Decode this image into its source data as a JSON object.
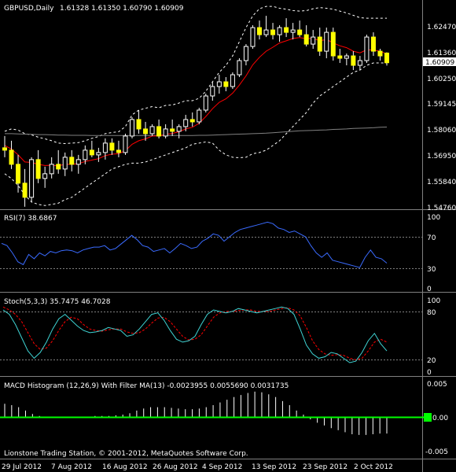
{
  "main_panel": {
    "header": {
      "symbol": "GBPUSD,Daily",
      "ohlc": "1.61328 1.61350 1.60790 1.60909"
    },
    "price_axis_labels": [
      "1.62470",
      "1.61360",
      "1.60250",
      "1.59145",
      "1.58060",
      "1.56950",
      "1.55840",
      "1.54760"
    ],
    "current_price": "1.60909",
    "current_price_box_color": "#ffffff"
  },
  "rsi_panel": {
    "header": "RSI(7) 38.6867",
    "levels": [
      "100",
      "70",
      "30",
      "0"
    ]
  },
  "stoch_panel": {
    "header": "Stoch(5,3,3) 35.7475 46.7028",
    "levels": [
      "100",
      "80",
      "20",
      "0"
    ]
  },
  "macd_panel": {
    "header": "MACD Histogram (12,26,9) With Filter MA(13) -0.0023955 0.0055690 0.0031735",
    "levels": [
      "0.005",
      "0.00",
      "-0.005"
    ]
  },
  "footer": {
    "copyright": "Lionstone Trading Station, © 2001-2012, MetaQuotes Software Corp."
  },
  "time_axis": {
    "labels": [
      "29 Jul 2012",
      "7 Aug 2012",
      "16 Aug 2012",
      "26 Aug 2012",
      "4 Sep 2012",
      "13 Sep 2012",
      "23 Sep 2012",
      "2 Oct 2012"
    ]
  },
  "colors": {
    "background": "#000000",
    "grid_text": "#ffffff",
    "candle_bull": "#000000",
    "candle_bear": "#ffff00",
    "ema_red": "#ff0000",
    "ma_gray": "#808080",
    "bands_white": "#ffffff",
    "rsi_line": "#3a6bff",
    "stoch_main": "#3fd4d4",
    "stoch_signal": "#ff0000",
    "macd_hist": "#ffffff",
    "macd_zero": "#00ff00",
    "divider": "#808080"
  },
  "chart_data": {
    "type": "line",
    "symbol": "GBPUSD",
    "timeframe": "Daily",
    "price_ylim": [
      1.5476,
      1.6325
    ],
    "candles": [
      {
        "o": 1.573,
        "h": 1.578,
        "l": 1.569,
        "c": 1.572
      },
      {
        "o": 1.572,
        "h": 1.576,
        "l": 1.564,
        "c": 1.566
      },
      {
        "o": 1.566,
        "h": 1.57,
        "l": 1.554,
        "c": 1.558
      },
      {
        "o": 1.558,
        "h": 1.564,
        "l": 1.548,
        "c": 1.552
      },
      {
        "o": 1.552,
        "h": 1.569,
        "l": 1.55,
        "c": 1.568
      },
      {
        "o": 1.568,
        "h": 1.572,
        "l": 1.558,
        "c": 1.56
      },
      {
        "o": 1.56,
        "h": 1.565,
        "l": 1.556,
        "c": 1.562
      },
      {
        "o": 1.562,
        "h": 1.569,
        "l": 1.56,
        "c": 1.566
      },
      {
        "o": 1.566,
        "h": 1.572,
        "l": 1.562,
        "c": 1.564
      },
      {
        "o": 1.564,
        "h": 1.571,
        "l": 1.561,
        "c": 1.569
      },
      {
        "o": 1.569,
        "h": 1.572,
        "l": 1.563,
        "c": 1.566
      },
      {
        "o": 1.566,
        "h": 1.57,
        "l": 1.562,
        "c": 1.568
      },
      {
        "o": 1.568,
        "h": 1.574,
        "l": 1.566,
        "c": 1.572
      },
      {
        "o": 1.572,
        "h": 1.576,
        "l": 1.569,
        "c": 1.57
      },
      {
        "o": 1.57,
        "h": 1.573,
        "l": 1.567,
        "c": 1.571
      },
      {
        "o": 1.571,
        "h": 1.577,
        "l": 1.568,
        "c": 1.575
      },
      {
        "o": 1.575,
        "h": 1.577,
        "l": 1.57,
        "c": 1.572
      },
      {
        "o": 1.572,
        "h": 1.576,
        "l": 1.569,
        "c": 1.571
      },
      {
        "o": 1.571,
        "h": 1.579,
        "l": 1.57,
        "c": 1.578
      },
      {
        "o": 1.578,
        "h": 1.586,
        "l": 1.577,
        "c": 1.585
      },
      {
        "o": 1.585,
        "h": 1.589,
        "l": 1.579,
        "c": 1.581
      },
      {
        "o": 1.581,
        "h": 1.584,
        "l": 1.576,
        "c": 1.579
      },
      {
        "o": 1.579,
        "h": 1.583,
        "l": 1.578,
        "c": 1.582
      },
      {
        "o": 1.582,
        "h": 1.585,
        "l": 1.577,
        "c": 1.578
      },
      {
        "o": 1.578,
        "h": 1.583,
        "l": 1.577,
        "c": 1.581
      },
      {
        "o": 1.581,
        "h": 1.585,
        "l": 1.578,
        "c": 1.58
      },
      {
        "o": 1.58,
        "h": 1.583,
        "l": 1.577,
        "c": 1.582
      },
      {
        "o": 1.582,
        "h": 1.587,
        "l": 1.58,
        "c": 1.585
      },
      {
        "o": 1.585,
        "h": 1.588,
        "l": 1.582,
        "c": 1.584
      },
      {
        "o": 1.584,
        "h": 1.59,
        "l": 1.583,
        "c": 1.589
      },
      {
        "o": 1.589,
        "h": 1.596,
        "l": 1.588,
        "c": 1.595
      },
      {
        "o": 1.595,
        "h": 1.601,
        "l": 1.593,
        "c": 1.599
      },
      {
        "o": 1.599,
        "h": 1.604,
        "l": 1.596,
        "c": 1.601
      },
      {
        "o": 1.601,
        "h": 1.603,
        "l": 1.597,
        "c": 1.599
      },
      {
        "o": 1.599,
        "h": 1.605,
        "l": 1.598,
        "c": 1.604
      },
      {
        "o": 1.604,
        "h": 1.611,
        "l": 1.603,
        "c": 1.61
      },
      {
        "o": 1.61,
        "h": 1.617,
        "l": 1.608,
        "c": 1.616
      },
      {
        "o": 1.616,
        "h": 1.625,
        "l": 1.615,
        "c": 1.624
      },
      {
        "o": 1.624,
        "h": 1.627,
        "l": 1.619,
        "c": 1.621
      },
      {
        "o": 1.621,
        "h": 1.629,
        "l": 1.62,
        "c": 1.623
      },
      {
        "o": 1.623,
        "h": 1.626,
        "l": 1.619,
        "c": 1.621
      },
      {
        "o": 1.621,
        "h": 1.625,
        "l": 1.618,
        "c": 1.624
      },
      {
        "o": 1.624,
        "h": 1.628,
        "l": 1.62,
        "c": 1.622
      },
      {
        "o": 1.622,
        "h": 1.626,
        "l": 1.619,
        "c": 1.623
      },
      {
        "o": 1.623,
        "h": 1.627,
        "l": 1.62,
        "c": 1.621
      },
      {
        "o": 1.621,
        "h": 1.625,
        "l": 1.616,
        "c": 1.617
      },
      {
        "o": 1.617,
        "h": 1.623,
        "l": 1.615,
        "c": 1.62
      },
      {
        "o": 1.62,
        "h": 1.624,
        "l": 1.612,
        "c": 1.614
      },
      {
        "o": 1.614,
        "h": 1.624,
        "l": 1.611,
        "c": 1.622
      },
      {
        "o": 1.622,
        "h": 1.624,
        "l": 1.61,
        "c": 1.612
      },
      {
        "o": 1.612,
        "h": 1.615,
        "l": 1.609,
        "c": 1.611
      },
      {
        "o": 1.611,
        "h": 1.613,
        "l": 1.608,
        "c": 1.612
      },
      {
        "o": 1.612,
        "h": 1.614,
        "l": 1.606,
        "c": 1.608
      },
      {
        "o": 1.608,
        "h": 1.612,
        "l": 1.606,
        "c": 1.61
      },
      {
        "o": 1.61,
        "h": 1.621,
        "l": 1.609,
        "c": 1.62
      },
      {
        "o": 1.62,
        "h": 1.622,
        "l": 1.612,
        "c": 1.614
      },
      {
        "o": 1.614,
        "h": 1.615,
        "l": 1.61,
        "c": 1.612
      },
      {
        "o": 1.6132,
        "h": 1.6135,
        "l": 1.6079,
        "c": 1.6091
      }
    ],
    "ema_red": [
      1.574,
      1.5725,
      1.57,
      1.567,
      1.5668,
      1.566,
      1.5655,
      1.5656,
      1.5654,
      1.566,
      1.566,
      1.5663,
      1.5672,
      1.5678,
      1.5684,
      1.5697,
      1.5703,
      1.5705,
      1.5718,
      1.5745,
      1.576,
      1.5768,
      1.578,
      1.578,
      1.5787,
      1.5791,
      1.5798,
      1.581,
      1.5817,
      1.5834,
      1.5863,
      1.5896,
      1.5923,
      1.5938,
      1.5962,
      1.5996,
      1.6035,
      1.6082,
      1.6114,
      1.614,
      1.6157,
      1.6175,
      1.6184,
      1.6194,
      1.6198,
      1.6193,
      1.6195,
      1.6184,
      1.619,
      1.6175,
      1.6163,
      1.6155,
      1.614,
      1.6133,
      1.6146,
      1.6145,
      1.614,
      1.6128
    ],
    "ma_gray": [
      1.579,
      1.579,
      1.5789,
      1.5788,
      1.5787,
      1.5786,
      1.5786,
      1.5785,
      1.5784,
      1.5784,
      1.5783,
      1.5783,
      1.5783,
      1.5782,
      1.5782,
      1.5782,
      1.5782,
      1.5782,
      1.5782,
      1.5782,
      1.5782,
      1.5782,
      1.5782,
      1.5782,
      1.5782,
      1.5782,
      1.5782,
      1.5782,
      1.5782,
      1.5783,
      1.5783,
      1.5784,
      1.5785,
      1.5786,
      1.5787,
      1.5788,
      1.5789,
      1.579,
      1.5791,
      1.5792,
      1.5794,
      1.5796,
      1.5798,
      1.58,
      1.5802,
      1.5803,
      1.5804,
      1.5805,
      1.5806,
      1.5808,
      1.5809,
      1.581,
      1.5812,
      1.5813,
      1.5814,
      1.5815,
      1.5817,
      1.5818
    ],
    "band_upper": [
      1.58,
      1.581,
      1.5805,
      1.579,
      1.5785,
      1.5775,
      1.5768,
      1.576,
      1.575,
      1.5748,
      1.575,
      1.5752,
      1.576,
      1.577,
      1.5778,
      1.579,
      1.5795,
      1.5798,
      1.582,
      1.587,
      1.589,
      1.5898,
      1.5905,
      1.59,
      1.591,
      1.5912,
      1.592,
      1.593,
      1.593,
      1.594,
      1.597,
      1.601,
      1.605,
      1.608,
      1.612,
      1.618,
      1.624,
      1.629,
      1.632,
      1.633,
      1.633,
      1.6322,
      1.6318,
      1.6312,
      1.631,
      1.6312,
      1.632,
      1.6325,
      1.6322,
      1.6318,
      1.631,
      1.6302,
      1.6292,
      1.6282,
      1.628,
      1.628,
      1.628,
      1.628
    ],
    "band_lower": [
      1.562,
      1.56,
      1.557,
      1.553,
      1.55,
      1.549,
      1.5485,
      1.549,
      1.5495,
      1.551,
      1.552,
      1.554,
      1.556,
      1.558,
      1.56,
      1.562,
      1.564,
      1.565,
      1.566,
      1.5665,
      1.5665,
      1.567,
      1.568,
      1.569,
      1.57,
      1.571,
      1.572,
      1.573,
      1.5745,
      1.575,
      1.5755,
      1.575,
      1.572,
      1.57,
      1.569,
      1.5688,
      1.569,
      1.5705,
      1.571,
      1.572,
      1.574,
      1.576,
      1.579,
      1.582,
      1.585,
      1.588,
      1.592,
      1.595,
      1.597,
      1.599,
      1.601,
      1.603,
      1.605,
      1.606,
      1.608,
      1.609,
      1.609,
      1.609
    ],
    "rsi": [
      63,
      60,
      50,
      38,
      34,
      48,
      42,
      50,
      46,
      52,
      50,
      53,
      54,
      53,
      50,
      54,
      56,
      58,
      58,
      60,
      54,
      56,
      62,
      68,
      74,
      68,
      60,
      58,
      52,
      54,
      56,
      50,
      56,
      63,
      60,
      56,
      58,
      66,
      70,
      76,
      74,
      66,
      72,
      78,
      82,
      84,
      86,
      88,
      90,
      92,
      90,
      84,
      82,
      78,
      80,
      76,
      72,
      60,
      50,
      44,
      50,
      40,
      38,
      36,
      34,
      32,
      30,
      44,
      54,
      44,
      42,
      36
    ],
    "stoch_k": [
      86,
      80,
      66,
      48,
      30,
      20,
      28,
      42,
      60,
      74,
      80,
      72,
      64,
      58,
      55,
      56,
      58,
      62,
      60,
      58,
      50,
      52,
      60,
      70,
      80,
      82,
      72,
      58,
      46,
      42,
      44,
      50,
      66,
      80,
      86,
      84,
      82,
      84,
      88,
      86,
      84,
      82,
      84,
      86,
      88,
      90,
      88,
      80,
      60,
      38,
      26,
      20,
      22,
      28,
      26,
      20,
      14,
      16,
      28,
      44,
      54,
      40,
      30
    ],
    "stoch_d": [
      90,
      86,
      80,
      70,
      55,
      40,
      32,
      34,
      44,
      58,
      70,
      76,
      74,
      66,
      60,
      58,
      57,
      59,
      60,
      60,
      56,
      54,
      55,
      60,
      68,
      75,
      76,
      70,
      60,
      50,
      45,
      46,
      52,
      64,
      76,
      82,
      84,
      84,
      85,
      86,
      86,
      84,
      84,
      84,
      86,
      88,
      89,
      86,
      78,
      62,
      44,
      32,
      26,
      24,
      25,
      24,
      20,
      18,
      20,
      30,
      42,
      46,
      42
    ],
    "macd_hist": [
      0.002,
      0.0018,
      0.0015,
      0.001,
      0.0005,
      0.0002,
      0.0,
      0.0,
      -0.0001,
      -0.0001,
      0.0,
      0.0001,
      0.0001,
      0.0002,
      0.0002,
      0.0002,
      0.0003,
      0.0004,
      0.0006,
      0.001,
      0.0013,
      0.0015,
      0.0015,
      0.0015,
      0.0014,
      0.0013,
      0.0012,
      0.0012,
      0.0013,
      0.0015,
      0.0018,
      0.0022,
      0.0026,
      0.003,
      0.0033,
      0.0036,
      0.0038,
      0.0037,
      0.0034,
      0.003,
      0.0024,
      0.0018,
      0.001,
      0.0004,
      -0.0003,
      -0.0008,
      -0.0012,
      -0.0016,
      -0.0019,
      -0.0022,
      -0.0025,
      -0.0026,
      -0.0026,
      -0.0025,
      -0.0024,
      -0.0024
    ]
  }
}
